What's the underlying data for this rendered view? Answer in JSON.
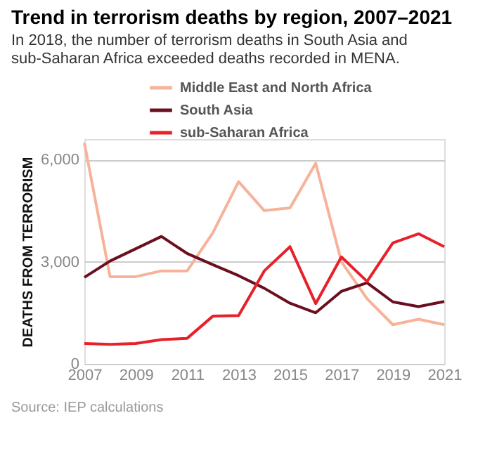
{
  "chart_data": {
    "type": "line",
    "title": "Trend in terrorism deaths by region, 2007–2021",
    "subtitle": [
      "In 2018, the number of terrorism deaths in South Asia and",
      "sub-Saharan Africa exceeded deaths recorded in MENA."
    ],
    "ylabel": "DEATHS FROM TERRORISM",
    "annotations": [
      "Source: IEP calculations"
    ],
    "x": [
      2007,
      2008,
      2009,
      2010,
      2011,
      2012,
      2013,
      2014,
      2015,
      2016,
      2017,
      2018,
      2019,
      2020,
      2021
    ],
    "series": [
      {
        "name": "Middle East and North Africa",
        "color": "#f7b29a",
        "values": [
          6490,
          2560,
          2560,
          2730,
          2730,
          3850,
          5350,
          4500,
          4580,
          5890,
          3000,
          1910,
          1150,
          1310,
          1150
        ]
      },
      {
        "name": "South Asia",
        "color": "#6b0f1f",
        "values": [
          2540,
          3020,
          3380,
          3740,
          3240,
          2910,
          2590,
          2220,
          1780,
          1500,
          2130,
          2380,
          1820,
          1680,
          1830
        ]
      },
      {
        "name": "sub-Saharan Africa",
        "color": "#e8202a",
        "values": [
          600,
          570,
          600,
          710,
          750,
          1400,
          1420,
          2730,
          3440,
          1770,
          3140,
          2420,
          3550,
          3820,
          3440
        ]
      }
    ],
    "xlim": [
      2007,
      2021
    ],
    "xticks": [
      2007,
      2009,
      2011,
      2013,
      2015,
      2017,
      2019,
      2021
    ],
    "ylim": [
      0,
      6600
    ],
    "yticks": [
      {
        "value": 0,
        "label": "0"
      },
      {
        "value": 3000,
        "label": "3,000"
      },
      {
        "value": 6000,
        "label": "6,000"
      }
    ],
    "grid": "y",
    "legend": "top left",
    "marker": "none",
    "line_style": "solid"
  }
}
